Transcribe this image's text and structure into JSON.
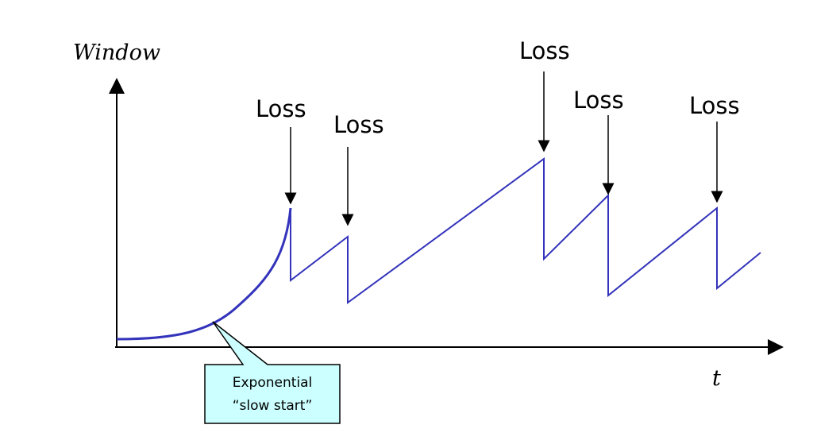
{
  "labels": {
    "y_axis": "Window",
    "x_axis": "t"
  },
  "loss_events": [
    {
      "label": "Loss"
    },
    {
      "label": "Loss"
    },
    {
      "label": "Loss"
    },
    {
      "label": "Loss"
    },
    {
      "label": "Loss"
    }
  ],
  "callout": {
    "line1": "Exponential",
    "line2": "“slow start”"
  },
  "colors": {
    "curve": "#3333bb",
    "axis": "#000000",
    "callout_fill": "#ccffff",
    "callout_border": "#000000"
  }
}
